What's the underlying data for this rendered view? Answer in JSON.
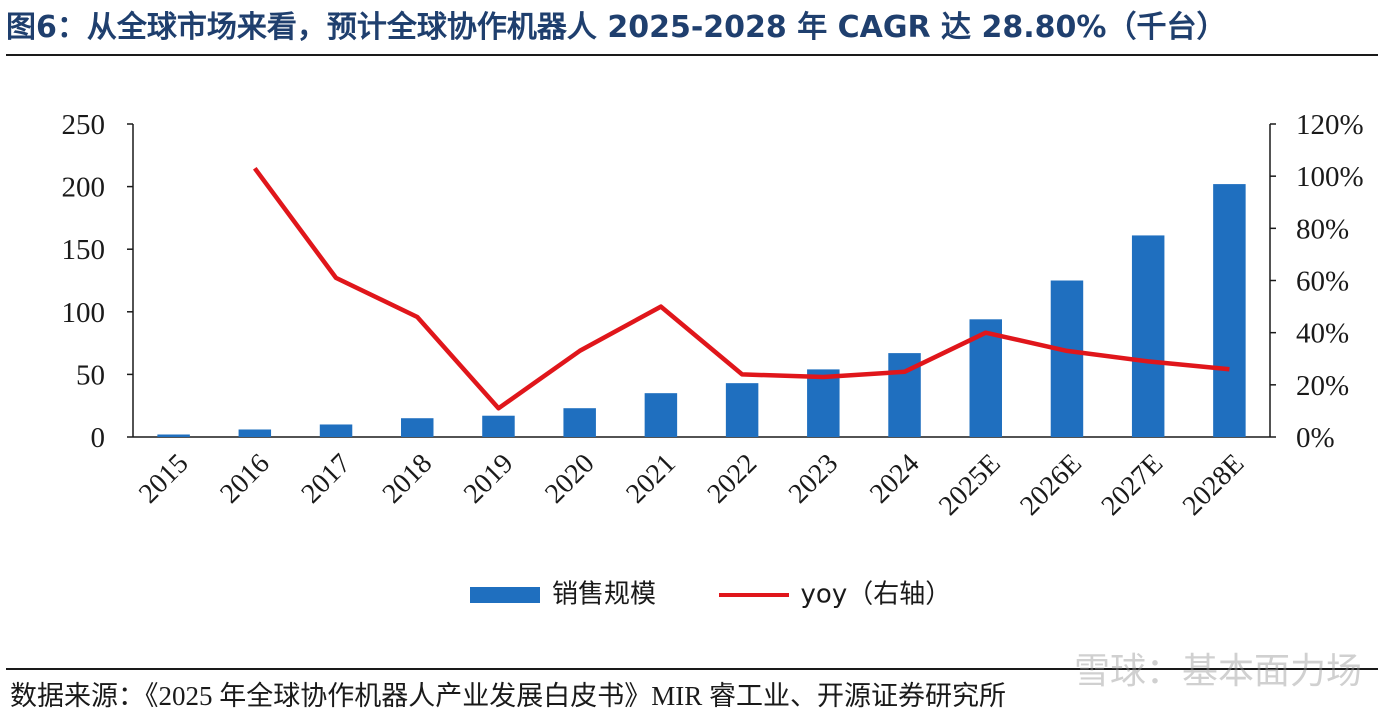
{
  "title": "图6：从全球市场来看，预计全球协作机器人 2025-2028 年 CAGR 达 28.80%（千台）",
  "source": "数据来源：《2025 年全球协作机器人产业发展白皮书》MIR 睿工业、开源证券研究所",
  "watermark": "雪球：基本面力场",
  "colors": {
    "bar": "#1f6fbf",
    "line": "#e0161b",
    "axis": "#1a1a1a"
  },
  "chart_data": {
    "type": "bar",
    "categories": [
      "2015",
      "2016",
      "2017",
      "2018",
      "2019",
      "2020",
      "2021",
      "2022",
      "2023",
      "2024",
      "2025E",
      "2026E",
      "2027E",
      "2028E"
    ],
    "series": [
      {
        "name": "销售规模",
        "type": "bar",
        "axis": "left",
        "values": [
          2,
          6,
          10,
          15,
          17,
          23,
          35,
          43,
          54,
          67,
          94,
          125,
          161,
          202
        ]
      },
      {
        "name": "yoy（右轴）",
        "type": "line",
        "axis": "right",
        "values": [
          null,
          103,
          61,
          46,
          11,
          33,
          50,
          24,
          23,
          25,
          40,
          33,
          29,
          26
        ]
      }
    ],
    "y_left": {
      "ylim": [
        0,
        250
      ],
      "ticks": [
        "0",
        "50",
        "100",
        "150",
        "200",
        "250"
      ]
    },
    "y_right": {
      "ylim": [
        0,
        120
      ],
      "ticks": [
        "0%",
        "20%",
        "40%",
        "60%",
        "80%",
        "100%",
        "120%"
      ]
    },
    "legend": "bottom-center",
    "grid": false
  }
}
